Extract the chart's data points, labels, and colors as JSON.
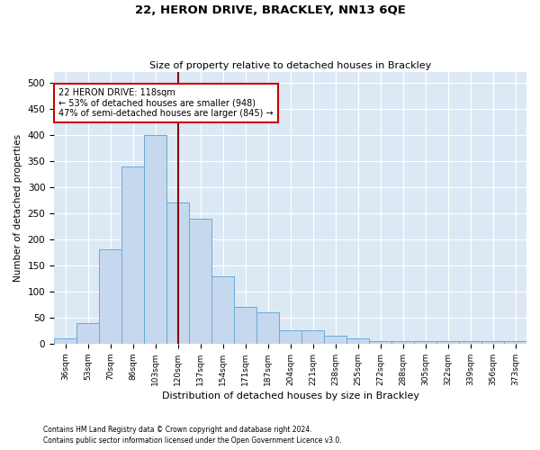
{
  "title1": "22, HERON DRIVE, BRACKLEY, NN13 6QE",
  "title2": "Size of property relative to detached houses in Brackley",
  "xlabel": "Distribution of detached houses by size in Brackley",
  "ylabel": "Number of detached properties",
  "categories": [
    "36sqm",
    "53sqm",
    "70sqm",
    "86sqm",
    "103sqm",
    "120sqm",
    "137sqm",
    "154sqm",
    "171sqm",
    "187sqm",
    "204sqm",
    "221sqm",
    "238sqm",
    "255sqm",
    "272sqm",
    "288sqm",
    "305sqm",
    "322sqm",
    "339sqm",
    "356sqm",
    "373sqm"
  ],
  "values": [
    10,
    40,
    180,
    340,
    400,
    270,
    240,
    130,
    70,
    60,
    25,
    25,
    15,
    10,
    5,
    5,
    5,
    5,
    5,
    5,
    5
  ],
  "bar_color": "#c5d8ee",
  "bar_edge_color": "#6aaad4",
  "bg_color": "#dce9f5",
  "grid_color": "#ffffff",
  "vline_color": "#8b0000",
  "annotation_text": "22 HERON DRIVE: 118sqm\n← 53% of detached houses are smaller (948)\n47% of semi-detached houses are larger (845) →",
  "annotation_box_color": "#ffffff",
  "annotation_box_edge": "#cc0000",
  "ylim": [
    0,
    520
  ],
  "yticks": [
    0,
    50,
    100,
    150,
    200,
    250,
    300,
    350,
    400,
    450,
    500
  ],
  "footnote1": "Contains HM Land Registry data © Crown copyright and database right 2024.",
  "footnote2": "Contains public sector information licensed under the Open Government Licence v3.0."
}
